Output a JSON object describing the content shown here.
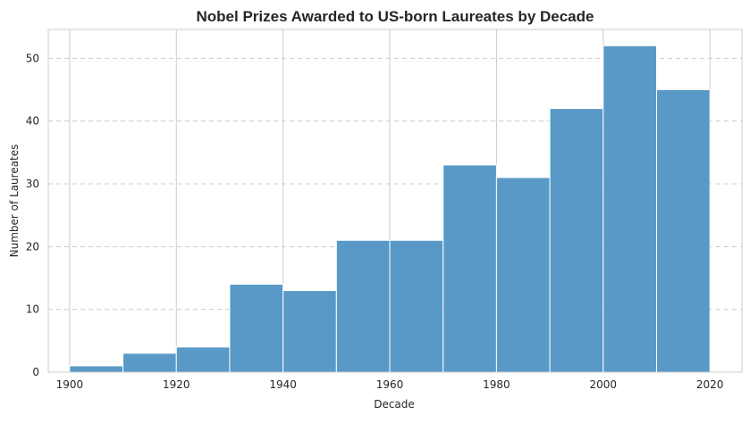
{
  "chart_data": {
    "type": "bar",
    "title": "Nobel Prizes Awarded to US-born Laureates by Decade",
    "xlabel": "Decade",
    "ylabel": "Number of Laureates",
    "bins": [
      {
        "start": 1900,
        "end": 1910,
        "value": 1
      },
      {
        "start": 1910,
        "end": 1920,
        "value": 3
      },
      {
        "start": 1920,
        "end": 1930,
        "value": 4
      },
      {
        "start": 1930,
        "end": 1940,
        "value": 14
      },
      {
        "start": 1940,
        "end": 1950,
        "value": 13
      },
      {
        "start": 1950,
        "end": 1960,
        "value": 21
      },
      {
        "start": 1960,
        "end": 1970,
        "value": 21
      },
      {
        "start": 1970,
        "end": 1980,
        "value": 33
      },
      {
        "start": 1980,
        "end": 1990,
        "value": 31
      },
      {
        "start": 1990,
        "end": 2000,
        "value": 42
      },
      {
        "start": 2000,
        "end": 2010,
        "value": 52
      },
      {
        "start": 2010,
        "end": 2020,
        "value": 45
      }
    ],
    "xticks": [
      "1900",
      "1920",
      "1940",
      "1960",
      "1980",
      "2000",
      "2020"
    ],
    "yticks": [
      "0",
      "10",
      "20",
      "30",
      "40",
      "50"
    ],
    "xlim": [
      1896,
      2026
    ],
    "ylim": [
      0,
      54.6
    ],
    "grid": {
      "x": "solid",
      "y": "dashed"
    },
    "legend": "none",
    "bar_color": "#4a90c2"
  }
}
